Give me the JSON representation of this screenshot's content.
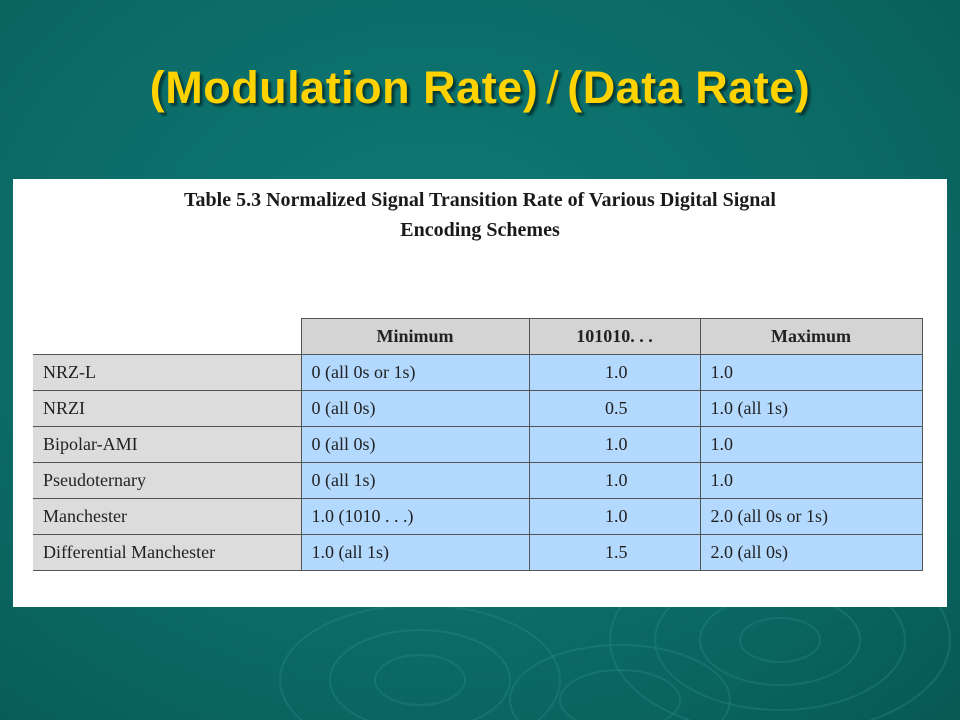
{
  "slide": {
    "title_left": "(Modulation Rate)",
    "title_separator": "/",
    "title_right": "(Data Rate)",
    "colors": {
      "background": "#0b6a66",
      "title": "#ffd200",
      "header_cell": "#d4d4d4",
      "row_label_cell": "#dcdcdc",
      "value_cell": "#b3d9ff"
    }
  },
  "table": {
    "caption_line1": "Table 5.3  Normalized Signal Transition Rate of Various Digital Signal",
    "caption_line2": "Encoding Schemes",
    "headers": [
      "Minimum",
      "101010. . .",
      "Maximum"
    ],
    "rows": [
      {
        "name": "NRZ-L",
        "minimum": "0 (all 0s or 1s)",
        "alternating": "1.0",
        "maximum": "1.0"
      },
      {
        "name": "NRZI",
        "minimum": "0 (all 0s)",
        "alternating": "0.5",
        "maximum": "1.0 (all 1s)"
      },
      {
        "name": "Bipolar-AMI",
        "minimum": "0 (all 0s)",
        "alternating": "1.0",
        "maximum": "1.0"
      },
      {
        "name": "Pseudoternary",
        "minimum": "0 (all 1s)",
        "alternating": "1.0",
        "maximum": "1.0"
      },
      {
        "name": "Manchester",
        "minimum": "1.0 (1010 . . .)",
        "alternating": "1.0",
        "maximum": "2.0 (all 0s or 1s)"
      },
      {
        "name": "Differential Manchester",
        "minimum": "1.0 (all 1s)",
        "alternating": "1.5",
        "maximum": "2.0 (all 0s)"
      }
    ]
  }
}
